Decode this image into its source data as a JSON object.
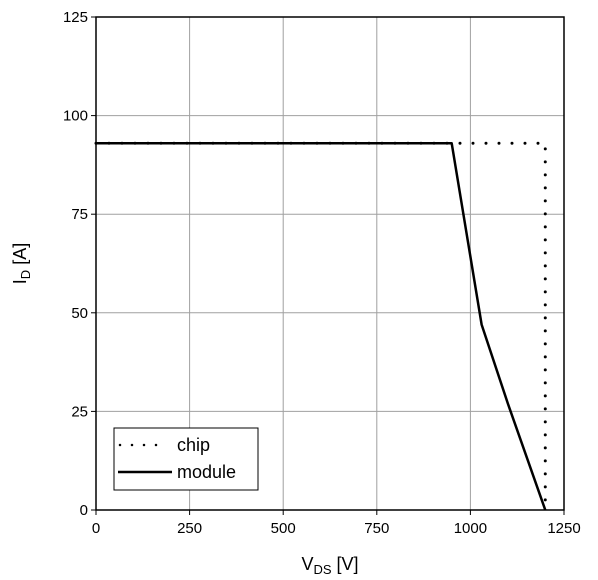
{
  "chart_data": {
    "type": "line",
    "xlabel": {
      "main": "V",
      "sub": "DS",
      "unit": " [V]"
    },
    "ylabel": {
      "main": "I",
      "sub": "D",
      "unit": " [A]"
    },
    "xlim": [
      0,
      1250
    ],
    "ylim": [
      0,
      125
    ],
    "x_ticks": [
      "0",
      "250",
      "500",
      "750",
      "1000",
      "1250"
    ],
    "y_ticks": [
      "0",
      "25",
      "50",
      "75",
      "100",
      "125"
    ],
    "grid": true,
    "legend_position": "bottom-left",
    "series": [
      {
        "name": "chip",
        "style": "dotted",
        "color": "#000000",
        "x": [
          0,
          1200,
          1200
        ],
        "y": [
          93,
          93,
          0
        ]
      },
      {
        "name": "module",
        "style": "solid",
        "color": "#000000",
        "x": [
          0,
          950,
          1030,
          1100,
          1200
        ],
        "y": [
          93,
          93,
          47,
          27,
          0
        ]
      }
    ]
  }
}
